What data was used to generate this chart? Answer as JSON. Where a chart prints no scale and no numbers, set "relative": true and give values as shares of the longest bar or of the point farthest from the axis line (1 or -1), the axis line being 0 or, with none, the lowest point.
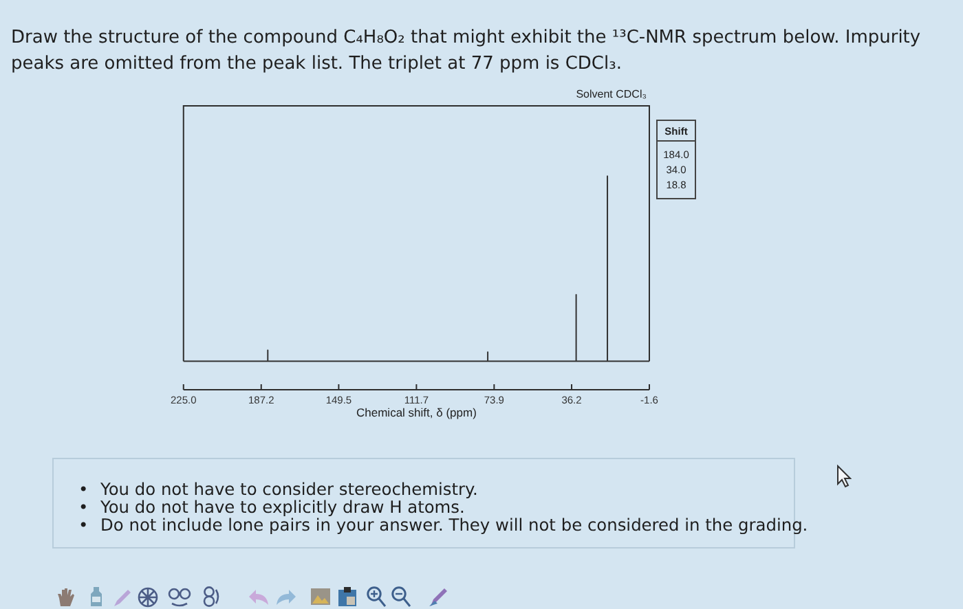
{
  "chart_data": {
    "type": "line",
    "title": "Draw the structure of the compound C₄H₈O₂ that might exhibit the ¹³C-NMR spectrum below. Impurity peaks are omitted from the peak list. The triplet at 77 ppm is CDCl₃.",
    "xlabel": "Chemical shift, δ (ppm)",
    "annotations": [
      "Solvent CDCl₃",
      "Shift",
      "184.0",
      "34.0",
      "18.8",
      "• You do not have to consider stereochemistry.",
      "• You do not have to explicitly draw H atoms.",
      "• Do not include lone pairs in your answer. They will not be considered in the grading."
    ],
    "x": [
      225,
      184.0,
      184.0,
      184.0,
      77,
      77,
      77,
      34.0,
      34.0,
      34.0,
      18.8,
      18.8,
      18.8,
      -1.6
    ],
    "values": [
      0,
      0,
      0.06,
      0,
      0,
      0.05,
      0,
      0,
      0.36,
      0,
      0,
      1,
      0,
      0
    ],
    "color": "#333333",
    "xlim": [
      225,
      -1.6
    ],
    "xticks": [
      {
        "value": 225,
        "label": "225.0"
      },
      187.2,
      149.5,
      111.7,
      73.9,
      36.2,
      -1.6
    ],
    "relative": true,
    "grid": false,
    "legend": false,
    "marker": "none",
    "tick_labels": "x"
  }
}
